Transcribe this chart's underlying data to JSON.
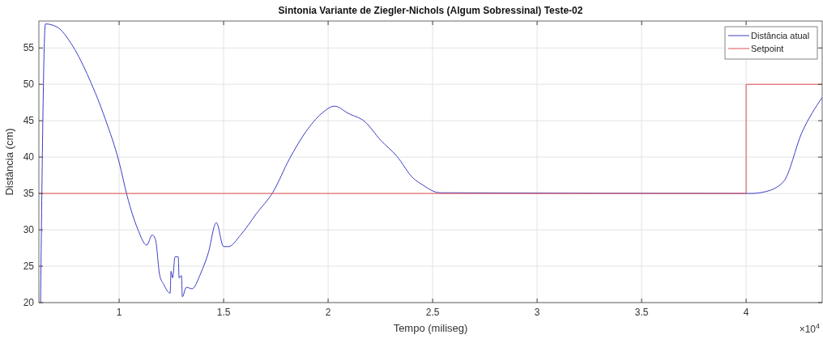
{
  "chart_data": {
    "type": "line",
    "title": "Sintonia Variante de Ziegler-Nichols (Algum Sobressinal) Teste-02",
    "xlabel": "Tempo (miliseg)",
    "ylabel": "Distância (cm)",
    "annotations": [
      "×10$^{4}$"
    ],
    "xlim": [
      0.616,
      4.364
    ],
    "ylim": [
      20,
      58.7
    ],
    "xticks": [
      1,
      1.5,
      2,
      2.5,
      3,
      3.5,
      4
    ],
    "yticks": [
      20,
      25,
      30,
      35,
      40,
      45,
      50,
      55
    ],
    "grid": true,
    "legend": "top right",
    "series": [
      {
        "name": "Distância atual",
        "color": "#3c3cc8",
        "x": [
          0.624,
          0.6473,
          0.7016,
          0.7791,
          0.8566,
          0.9341,
          1,
          1.0388,
          1.0891,
          1.1318,
          1.1589,
          1.1744,
          1.1938,
          1.2132,
          1.2442,
          1.2481,
          1.2558,
          1.2675,
          1.2829,
          1.2868,
          1.2984,
          1.3023,
          1.3217,
          1.3488,
          1.3915,
          1.4264,
          1.4651,
          1.5,
          1.5233,
          1.5814,
          1.6589,
          1.7364,
          1.814,
          1.8915,
          1.969,
          2.031,
          2.0969,
          2.1744,
          2.2519,
          2.3295,
          2.407,
          2.4457,
          2.5349,
          4.0233,
          4.0853,
          4.1783,
          4.2674,
          4.364
        ],
        "values": [
          20,
          58.3,
          57.9,
          55.2,
          50.8,
          45.2,
          39.3,
          34.6,
          30.1,
          27.9,
          29.3,
          28.6,
          23.8,
          22.5,
          21.3,
          24.3,
          23.4,
          26.3,
          26.3,
          23.4,
          23.7,
          20.8,
          22.1,
          21.9,
          24.1,
          26.8,
          31,
          27.7,
          27.7,
          29.3,
          32.3,
          35.2,
          39.7,
          43.4,
          46,
          47,
          46,
          44.9,
          42.3,
          40.1,
          37.1,
          36.3,
          35.1,
          35,
          35.2,
          36.6,
          43.4,
          48.2
        ]
      },
      {
        "name": "Setpoint",
        "color": "#e05050",
        "x": [
          0.616,
          4,
          4,
          4.364
        ],
        "values": [
          35,
          35,
          50,
          50
        ]
      }
    ]
  }
}
